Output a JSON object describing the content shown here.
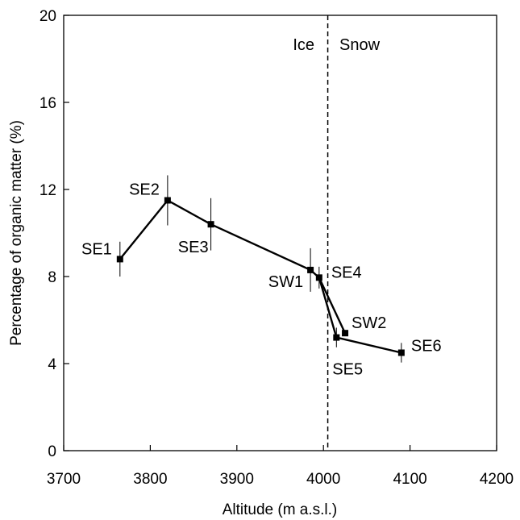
{
  "chart_data": {
    "type": "line",
    "xlabel": "Altitude (m a.s.l.)",
    "ylabel": "Percentage of organic matter (%)",
    "xlim": [
      3700,
      4200
    ],
    "ylim": [
      0,
      20
    ],
    "x_ticks": [
      "3700",
      "3800",
      "3900",
      "4000",
      "4100",
      "4200"
    ],
    "y_ticks": [
      "0",
      "4",
      "8",
      "12",
      "16",
      "20"
    ],
    "grid": false,
    "divider": {
      "x": 4005,
      "left_label": "Ice",
      "right_label": "Snow"
    },
    "points": [
      {
        "label": "SE1",
        "x": 3765,
        "y": 8.8,
        "err": 0.8
      },
      {
        "label": "SE2",
        "x": 3820,
        "y": 11.5,
        "err": 1.15
      },
      {
        "label": "SE3",
        "x": 3870,
        "y": 10.4,
        "err": 1.2
      },
      {
        "label": "SW1",
        "x": 3985,
        "y": 8.3,
        "err": 1.0
      },
      {
        "label": "SE4",
        "x": 3995,
        "y": 7.95,
        "err": 0.5
      },
      {
        "label": "SW2",
        "x": 4025,
        "y": 5.4,
        "err": 0.0
      },
      {
        "label": "SE5",
        "x": 4015,
        "y": 5.2,
        "err": 0.45
      },
      {
        "label": "SE6",
        "x": 4090,
        "y": 4.5,
        "err": 0.45
      }
    ],
    "line_segments": [
      [
        "SE1",
        "SE2",
        "SE3",
        "SW1",
        "SE4",
        "SW2"
      ],
      [
        "SE4",
        "SE5",
        "SE6"
      ]
    ],
    "colors": {
      "line": "#000000",
      "marker": "#000000"
    }
  }
}
